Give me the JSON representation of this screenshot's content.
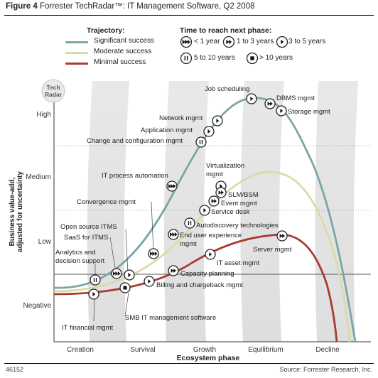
{
  "header": {
    "figure_label": "Figure 4",
    "title": "Forrester TechRadar™: IT Management Software, Q2 2008"
  },
  "legend": {
    "trajectory_title": "Trajectory:",
    "trajectories": [
      {
        "label": "Significant success",
        "color": "#7aa6a6"
      },
      {
        "label": "Moderate success",
        "color": "#d8dca8"
      },
      {
        "label": "Minimal success",
        "color": "#a83a32"
      }
    ],
    "time_title": "Time to reach next phase:",
    "times": [
      {
        "icon": "triple-chevron-icon",
        "label": "< 1 year"
      },
      {
        "icon": "double-chevron-icon",
        "label": "1 to 3 years"
      },
      {
        "icon": "single-chevron-icon",
        "label": "3 to 5 years"
      },
      {
        "icon": "pause-icon",
        "label": "5 to 10 years"
      },
      {
        "icon": "stop-icon",
        "label": "> 10 years"
      }
    ]
  },
  "badge": {
    "line1": "Tech",
    "line2": "Radar"
  },
  "y_axis": {
    "title_line1": "Business value-add,",
    "title_line2": "adjusted for uncertainty",
    "ticks": [
      "High",
      "Medium",
      "Low",
      "Negative"
    ]
  },
  "x_axis": {
    "title": "Ecosystem phase",
    "phases": [
      "Creation",
      "Survival",
      "Growth",
      "Equilibrium",
      "Decline"
    ]
  },
  "technologies": [
    {
      "name": "Job scheduling",
      "icon": "single-chevron-icon"
    },
    {
      "name": "DBMS mgmt",
      "icon": "double-chevron-icon"
    },
    {
      "name": "Storage mgmt",
      "icon": "single-chevron-icon"
    },
    {
      "name": "Network mgmt",
      "icon": "single-chevron-icon"
    },
    {
      "name": "Application mgmt",
      "icon": "single-chevron-icon"
    },
    {
      "name": "Change and configuration mgmt",
      "icon": "pause-icon"
    },
    {
      "name": "IT process automation",
      "icon": "triple-chevron-icon"
    },
    {
      "name": "Virtualization mgmt",
      "icon": "single-chevron-icon"
    },
    {
      "name": "SLM/BSM",
      "icon": "double-chevron-icon"
    },
    {
      "name": "Event mgmt",
      "icon": "double-chevron-icon"
    },
    {
      "name": "Service desk",
      "icon": "single-chevron-icon"
    },
    {
      "name": "Convergence mgmt",
      "icon": "triple-chevron-icon"
    },
    {
      "name": "Autodiscovery technologies",
      "icon": "pause-icon"
    },
    {
      "name": "Open source ITMS",
      "icon": "triple-chevron-icon"
    },
    {
      "name": "End user experience mgmt",
      "icon": "triple-chevron-icon"
    },
    {
      "name": "SaaS for ITMS",
      "icon": "single-chevron-icon"
    },
    {
      "name": "Server mgmt",
      "icon": "double-chevron-icon"
    },
    {
      "name": "Analytics and decision support",
      "icon": "pause-icon"
    },
    {
      "name": "IT asset mgmt",
      "icon": "single-chevron-icon"
    },
    {
      "name": "Capacity planning",
      "icon": "double-chevron-icon"
    },
    {
      "name": "Billing and chargeback mgmt",
      "icon": "single-chevron-icon"
    },
    {
      "name": "SMB IT management software",
      "icon": "stop-icon"
    },
    {
      "name": "IT financial mgmt",
      "icon": "single-chevron-icon"
    }
  ],
  "footer": {
    "doc_id": "46152",
    "source": "Source: Forrester Research, Inc."
  }
}
